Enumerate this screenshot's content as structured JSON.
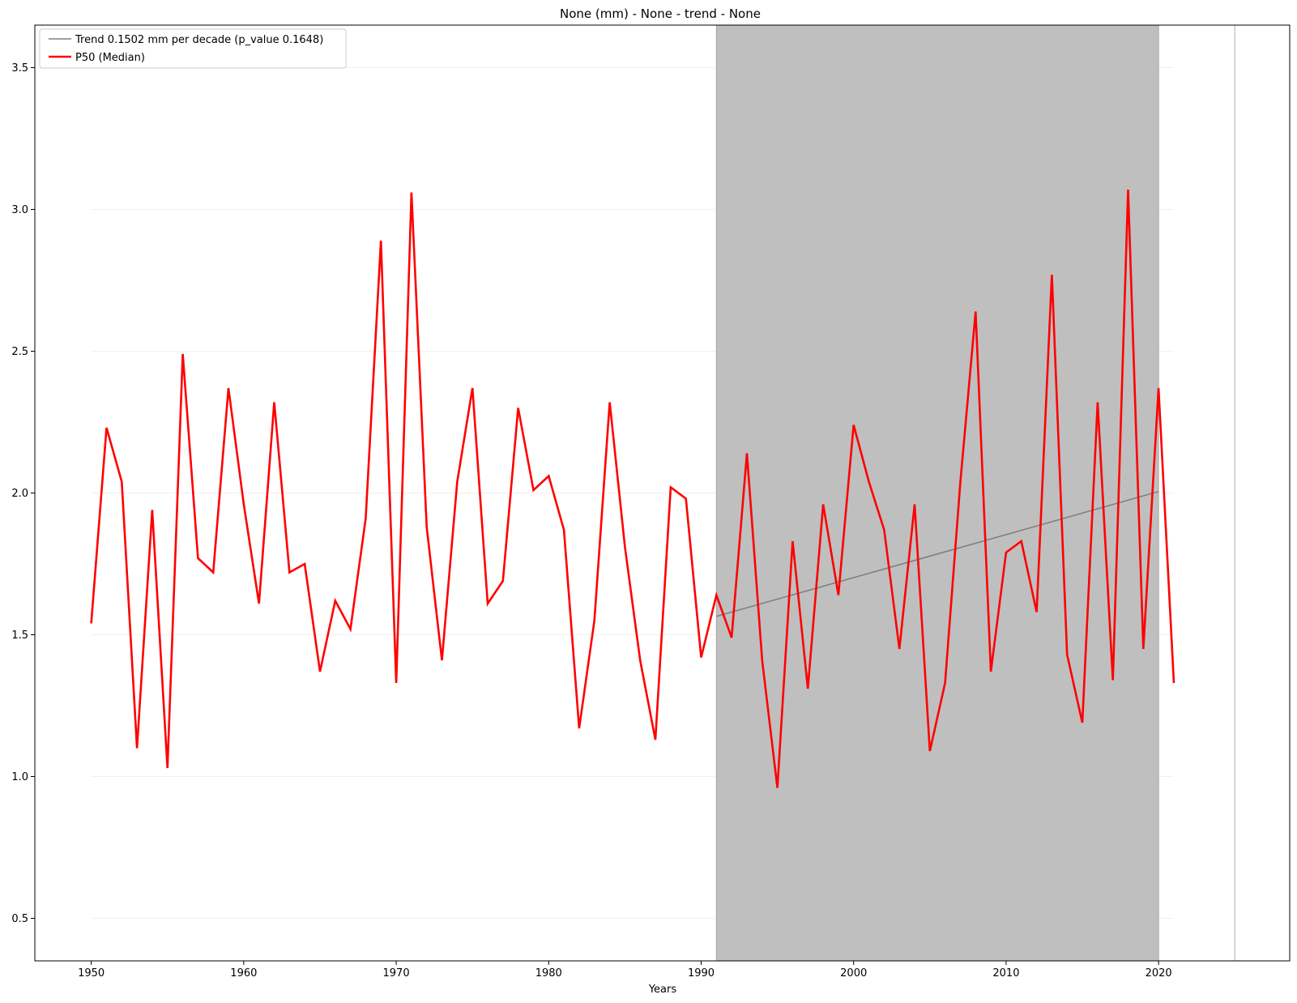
{
  "chart_data": {
    "type": "line",
    "title": "None (mm) - None - trend  - None",
    "xlabel": "Years",
    "ylabel": "",
    "xlim": [
      1946.3,
      2028.6
    ],
    "ylim": [
      0.35,
      3.65
    ],
    "xticks": [
      "1950",
      "1960",
      "1970",
      "1980",
      "1990",
      "2000",
      "2010",
      "2020"
    ],
    "yticks": [
      "0.5",
      "1.0",
      "1.5",
      "2.0",
      "2.5",
      "3.0",
      "3.5"
    ],
    "grid": "horizontal-faint",
    "legend": "top-left",
    "shaded_span": [
      1991,
      2020
    ],
    "vline_x": 2025,
    "series": [
      {
        "name": "P50 (Median)",
        "color": "#ff0000",
        "x": [
          1950,
          1951,
          1952,
          1953,
          1954,
          1955,
          1956,
          1957,
          1958,
          1959,
          1960,
          1961,
          1962,
          1963,
          1964,
          1965,
          1966,
          1967,
          1968,
          1969,
          1970,
          1971,
          1972,
          1973,
          1974,
          1975,
          1976,
          1977,
          1978,
          1979,
          1980,
          1981,
          1982,
          1983,
          1984,
          1985,
          1986,
          1987,
          1988,
          1989,
          1990,
          1991,
          1992,
          1993,
          1994,
          1995,
          1996,
          1997,
          1998,
          1999,
          2000,
          2001,
          2002,
          2003,
          2004,
          2005,
          2006,
          2007,
          2008,
          2009,
          2010,
          2011,
          2012,
          2013,
          2014,
          2015,
          2016,
          2017,
          2018,
          2019,
          2020,
          2021
        ],
        "values": [
          1.54,
          2.23,
          2.04,
          1.1,
          1.94,
          1.03,
          2.49,
          1.77,
          1.72,
          2.37,
          1.96,
          1.61,
          2.32,
          1.72,
          1.75,
          1.37,
          1.62,
          1.52,
          1.91,
          2.89,
          1.33,
          3.06,
          1.88,
          1.41,
          2.04,
          2.37,
          1.61,
          1.69,
          2.3,
          2.01,
          2.06,
          1.87,
          1.17,
          1.55,
          2.32,
          1.81,
          1.41,
          1.13,
          2.02,
          1.98,
          1.42,
          1.64,
          1.49,
          2.14,
          1.41,
          0.96,
          1.83,
          1.31,
          1.96,
          1.64,
          2.24,
          2.04,
          1.87,
          1.45,
          1.96,
          1.09,
          1.33,
          2.04,
          2.64,
          1.37,
          1.79,
          1.83,
          1.58,
          2.77,
          1.43,
          1.19,
          2.32,
          1.34,
          3.07,
          1.45,
          2.37,
          1.33
        ]
      },
      {
        "name": "Trend 0.1502 mm per decade (p_value 0.1648)",
        "color": "#808080",
        "x": [
          1991,
          2020
        ],
        "values": [
          1.565,
          2.005
        ]
      }
    ]
  }
}
